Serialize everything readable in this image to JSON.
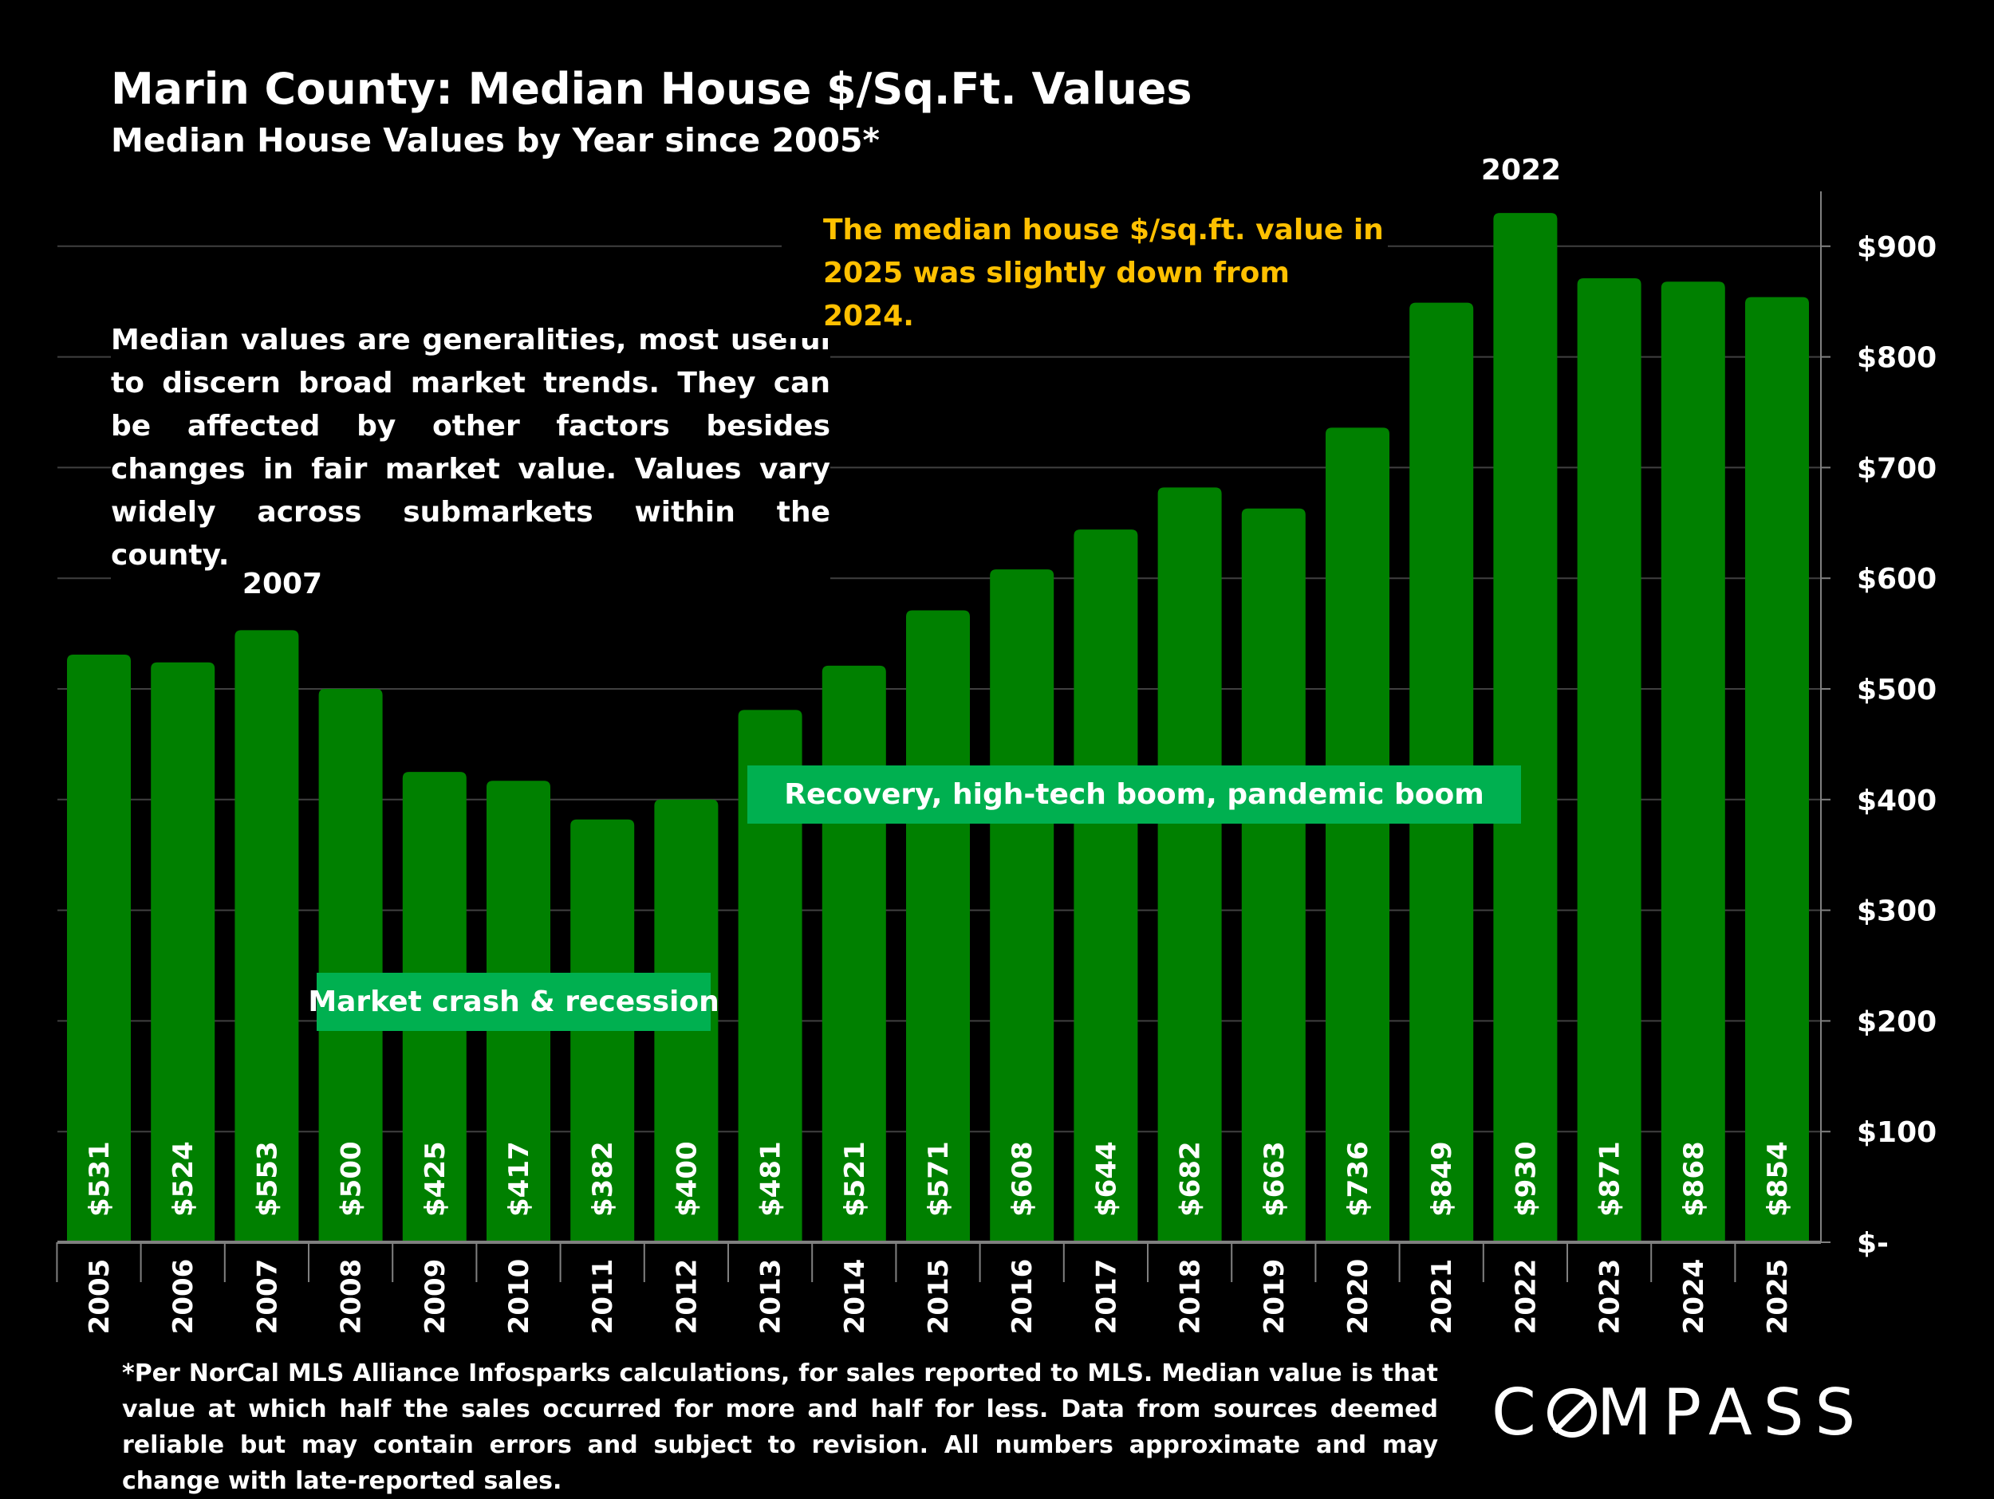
{
  "title": "Marin County: Median House $/Sq.Ft. Values",
  "subtitle": "Median House Values by Year since 2005*",
  "note": "Median values are generalities, most useful to discern broad market trends. They can be affected by other factors besides changes in fair market value. Values vary widely across submarkets within the county.",
  "callout": "The median house $/sq.ft. value in 2025 was slightly down from 2024.",
  "tags": {
    "recovery": "Recovery, high-tech boom, pandemic boom",
    "crash": "Market crash & recession"
  },
  "peaks": {
    "p2007": "2007",
    "p2022": "2022"
  },
  "footnote": "*Per NorCal MLS Alliance Infosparks calculations, for sales reported to MLS. Median value is that value at which half the sales occurred for more and half for less. Data from sources deemed reliable but may contain errors and subject to revision. All numbers approximate and may change with late-reported sales.",
  "logo": "COMPASS",
  "colors": {
    "bar": "#008000",
    "tag": "#00b050",
    "callout": "#ffc000",
    "background": "#000000"
  },
  "chart_data": {
    "type": "bar",
    "categories": [
      "2005",
      "2006",
      "2007",
      "2008",
      "2009",
      "2010",
      "2011",
      "2012",
      "2013",
      "2014",
      "2015",
      "2016",
      "2017",
      "2018",
      "2019",
      "2020",
      "2021",
      "2022",
      "2023",
      "2024",
      "2025"
    ],
    "values": [
      531,
      524,
      553,
      500,
      425,
      417,
      382,
      400,
      481,
      521,
      571,
      608,
      644,
      682,
      663,
      736,
      849,
      930,
      871,
      868,
      854
    ],
    "data_labels": [
      "$531",
      "$524",
      "$553",
      "$500",
      "$425",
      "$417",
      "$382",
      "$400",
      "$481",
      "$521",
      "$571",
      "$608",
      "$644",
      "$682",
      "$663",
      "$736",
      "$849",
      "$930",
      "$871",
      "$868",
      "$854"
    ],
    "ylim": [
      0,
      950
    ],
    "y_ticks": [
      0,
      100,
      200,
      300,
      400,
      500,
      600,
      700,
      800,
      900
    ],
    "y_tick_labels": [
      "$-",
      "$100",
      "$200",
      "$300",
      "$400",
      "$500",
      "$600",
      "$700",
      "$800",
      "$900"
    ],
    "y_axis_position": "right",
    "grid": true,
    "xlabel": "",
    "ylabel": ""
  }
}
